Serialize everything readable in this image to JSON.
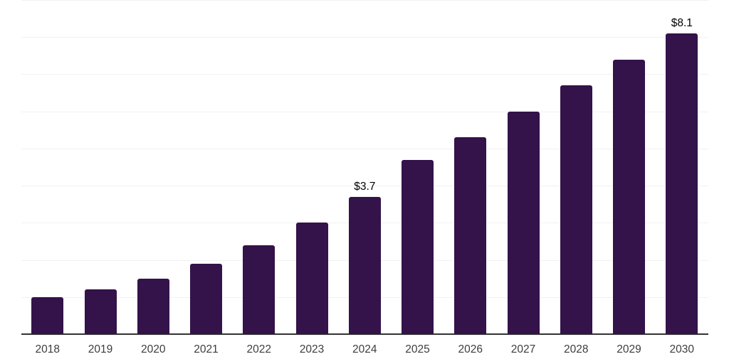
{
  "chart_data": {
    "type": "bar",
    "categories": [
      "2018",
      "2019",
      "2020",
      "2021",
      "2022",
      "2023",
      "2024",
      "2025",
      "2026",
      "2027",
      "2028",
      "2029",
      "2030"
    ],
    "values": [
      1.0,
      1.2,
      1.5,
      1.9,
      2.4,
      3.0,
      3.7,
      4.7,
      5.3,
      6.0,
      6.7,
      7.4,
      8.1
    ],
    "annotations": [
      {
        "category": "2024",
        "text": "$3.7"
      },
      {
        "category": "2030",
        "text": "$8.1"
      }
    ],
    "ylim": [
      0,
      9
    ],
    "grid": true,
    "gridline_step": 1,
    "legend": "none",
    "colors": {
      "bar": "#34124a",
      "grid": "#f1f1f1",
      "axis": "#333333",
      "tick_label": "#3d3d3d",
      "value_label": "#000000",
      "background": "#ffffff"
    }
  }
}
